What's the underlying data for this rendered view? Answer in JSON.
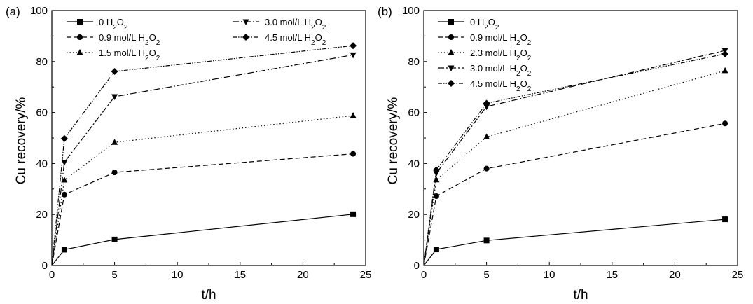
{
  "chart_data": [
    {
      "type": "line",
      "panel_label": "(a)",
      "xlabel": "t/h",
      "ylabel": "Cu recovery/%",
      "xlim": [
        0,
        25
      ],
      "ylim": [
        0,
        100
      ],
      "xticks": [
        "0",
        "5",
        "10",
        "15",
        "20",
        "25"
      ],
      "yticks": [
        "0",
        "20",
        "40",
        "60",
        "80",
        "100"
      ],
      "x": [
        0,
        1,
        5,
        24
      ],
      "series": [
        {
          "name": "0 H2O2",
          "name_base": "0 H",
          "name_conc": "",
          "marker": "square",
          "dash": "",
          "values": [
            0,
            6.2,
            10.2,
            20.1
          ]
        },
        {
          "name": "0.9 mol/L H2O2",
          "name_base": "0.9 mol/L H",
          "marker": "circle",
          "dash": "7,4",
          "values": [
            0,
            27.8,
            36.5,
            43.8
          ]
        },
        {
          "name": "1.5 mol/L H2O2",
          "name_base": "1.5 mol/L H",
          "marker": "triangle-up",
          "dash": "1.5,3",
          "values": [
            0,
            33.5,
            48.3,
            58.8
          ]
        },
        {
          "name": "3.0 mol/L H2O2",
          "name_base": "3.0 mol/L H",
          "marker": "triangle-down",
          "dash": "9,3,2,3",
          "values": [
            0,
            40.5,
            66.2,
            82.6
          ]
        },
        {
          "name": "4.5 mol/L H2O2",
          "name_base": "4.5 mol/L H",
          "marker": "diamond",
          "dash": "6,2,1.5,2,1.5,2",
          "values": [
            0,
            49.8,
            76.1,
            86.2
          ]
        }
      ]
    },
    {
      "type": "line",
      "panel_label": "(b)",
      "xlabel": "t/h",
      "ylabel": "Cu recovery/%",
      "xlim": [
        0,
        25
      ],
      "ylim": [
        0,
        100
      ],
      "xticks": [
        "0",
        "5",
        "10",
        "15",
        "20",
        "25"
      ],
      "yticks": [
        "0",
        "20",
        "40",
        "60",
        "80",
        "100"
      ],
      "x": [
        0,
        1,
        5,
        24
      ],
      "series": [
        {
          "name": "0 H2O2",
          "name_base": "0 H",
          "marker": "square",
          "dash": "",
          "values": [
            0,
            6.3,
            9.8,
            18.1
          ]
        },
        {
          "name": "0.9 mol/L H2O2",
          "name_base": "0.9 mol/L H",
          "marker": "circle",
          "dash": "7,4",
          "values": [
            0,
            27.2,
            38.0,
            55.7
          ]
        },
        {
          "name": "2.3 mol/L H2O2",
          "name_base": "2.3 mol/L H",
          "marker": "triangle-up",
          "dash": "1.5,3",
          "values": [
            0,
            33.6,
            50.4,
            76.4
          ]
        },
        {
          "name": "3.0 mol/L H2O2",
          "name_base": "3.0 mol/L H",
          "marker": "triangle-down",
          "dash": "9,3,2,3",
          "values": [
            0,
            36.2,
            62.3,
            84.3
          ]
        },
        {
          "name": "4.5 mol/L H2O2",
          "name_base": "4.5 mol/L H",
          "marker": "diamond",
          "dash": "6,2,1.5,2,1.5,2",
          "values": [
            0,
            37.5,
            63.6,
            83.0
          ]
        }
      ]
    }
  ]
}
